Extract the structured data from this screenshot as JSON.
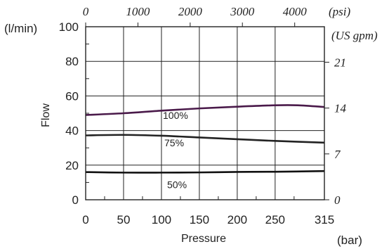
{
  "chart_data": {
    "type": "line",
    "title": "",
    "xlabel": "Pressure",
    "ylabel": "Flow",
    "x_unit": "(bar)",
    "y_unit": "(l/min)",
    "xlim": [
      0,
      315
    ],
    "ylim": [
      0,
      100
    ],
    "x_ticks": [
      0,
      50,
      100,
      150,
      200,
      250,
      315
    ],
    "y_ticks": [
      0,
      20,
      40,
      60,
      80,
      100
    ],
    "grid": true,
    "secondary_x": {
      "unit": "(psi)",
      "ticks": [
        {
          "label": "0",
          "bar": 0
        },
        {
          "label": "1000",
          "bar": 68.95
        },
        {
          "label": "2000",
          "bar": 137.9
        },
        {
          "label": "3000",
          "bar": 206.8
        },
        {
          "label": "4000",
          "bar": 275.8
        }
      ]
    },
    "secondary_y": {
      "unit": "(US gpm)",
      "ticks": [
        {
          "label": "0",
          "lpm": 0
        },
        {
          "label": "7",
          "lpm": 26.5
        },
        {
          "label": "14",
          "lpm": 53.0
        },
        {
          "label": "21",
          "lpm": 79.5
        }
      ]
    },
    "series": [
      {
        "name": "100%",
        "color": "#4a1a4a",
        "x": [
          0,
          50,
          100,
          150,
          200,
          250,
          280,
          315
        ],
        "y": [
          49,
          50,
          51.5,
          52.8,
          53.8,
          54.6,
          54.6,
          53.6
        ]
      },
      {
        "name": "75%",
        "color": "#222222",
        "x": [
          0,
          50,
          100,
          150,
          200,
          250,
          315
        ],
        "y": [
          37.2,
          37.5,
          37,
          36,
          35,
          34,
          33
        ]
      },
      {
        "name": "50%",
        "color": "#111111",
        "x": [
          0,
          50,
          100,
          150,
          200,
          250,
          315
        ],
        "y": [
          16,
          15.7,
          15.7,
          15.8,
          16.1,
          16.2,
          16.6
        ]
      }
    ]
  }
}
